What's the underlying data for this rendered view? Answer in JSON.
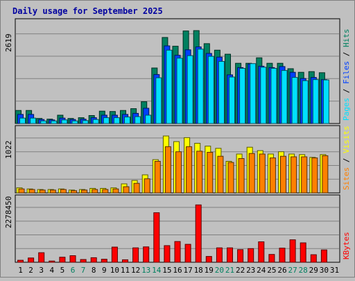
{
  "chart_data": {
    "type": "bar",
    "title": "Daily usage for September 2025",
    "colors": {
      "background": "#c0c0c0",
      "plot_bg": "#c0c0c0",
      "gridline": "#808080",
      "title": "#0000a0",
      "axis_text": "#000000",
      "weekend": "#008060",
      "hits": "#008060",
      "files": "#0040ff",
      "pages": "#00e0ff",
      "visits": "#ffff00",
      "sites": "#ff8000",
      "kbytes": "#ff0000"
    },
    "days": [
      "1",
      "2",
      "3",
      "4",
      "5",
      "6",
      "7",
      "8",
      "9",
      "10",
      "11",
      "12",
      "13",
      "14",
      "15",
      "16",
      "17",
      "18",
      "19",
      "20",
      "21",
      "22",
      "23",
      "24",
      "25",
      "26",
      "27",
      "28",
      "29",
      "30",
      "31"
    ],
    "weekend_days": [
      "6",
      "7",
      "13",
      "14",
      "20",
      "21",
      "27",
      "28"
    ],
    "panels": [
      {
        "id": "hits-files-pages",
        "ymax_label": "2619",
        "ymax": 2619,
        "legend": [
          "Pages",
          "Files",
          "Hits"
        ],
        "legend_separator": " / ",
        "series": [
          {
            "name": "Hits",
            "color": "#008060",
            "values": [
              360,
              360,
              140,
              120,
              230,
              140,
              160,
              220,
              340,
              330,
              360,
              410,
              600,
              1530,
              2370,
              2130,
              2550,
              2560,
              2200,
              2020,
              1910,
              1660,
              1660,
              1810,
              1660,
              1660,
              1510,
              1410,
              1430,
              1400,
              null
            ]
          },
          {
            "name": "Files",
            "color": "#0040ff",
            "values": [
              250,
              250,
              110,
              100,
              150,
              110,
              120,
              160,
              230,
              230,
              250,
              280,
              420,
              1350,
              2140,
              1880,
              2030,
              2110,
              1930,
              1830,
              1340,
              1540,
              1640,
              1580,
              1540,
              1570,
              1410,
              1240,
              1270,
              1210,
              null
            ]
          },
          {
            "name": "Pages",
            "color": "#00e0ff",
            "values": [
              150,
              150,
              70,
              70,
              100,
              70,
              80,
              110,
              160,
              160,
              180,
              190,
              230,
              1260,
              2020,
              1800,
              1870,
              2050,
              1850,
              1710,
              1280,
              1520,
              1650,
              1550,
              1520,
              1460,
              1270,
              1180,
              1210,
              1200,
              null
            ]
          }
        ]
      },
      {
        "id": "visits-sites",
        "ymax_label": "1022",
        "ymax": 1022,
        "legend": [
          "Sites",
          "Visits"
        ],
        "legend_separator": " / ",
        "series": [
          {
            "name": "Visits",
            "color": "#ffff00",
            "values": [
              90,
              70,
              60,
              60,
              70,
              50,
              60,
              80,
              80,
              90,
              160,
              220,
              320,
              590,
              1010,
              910,
              980,
              880,
              830,
              790,
              560,
              690,
              810,
              750,
              690,
              730,
              690,
              680,
              630,
              680,
              null
            ]
          },
          {
            "name": "Sites",
            "color": "#ff8000",
            "values": [
              70,
              60,
              50,
              50,
              60,
              40,
              50,
              60,
              60,
              70,
              110,
              170,
              250,
              560,
              820,
              730,
              820,
              740,
              720,
              650,
              540,
              610,
              700,
              690,
              620,
              650,
              640,
              640,
              620,
              660,
              null
            ]
          }
        ]
      },
      {
        "id": "kbytes",
        "ymax_label": "2278450",
        "ymax": 2278450,
        "legend": [
          "KBytes"
        ],
        "legend_separator": " / ",
        "series": [
          {
            "name": "KBytes",
            "color": "#ff0000",
            "values": [
              80000,
              170000,
              380000,
              50000,
              200000,
              260000,
              110000,
              180000,
              120000,
              600000,
              100000,
              570000,
              610000,
              1960000,
              660000,
              820000,
              710000,
              2270000,
              230000,
              570000,
              570000,
              500000,
              540000,
              810000,
              310000,
              560000,
              890000,
              770000,
              300000,
              490000,
              null
            ]
          }
        ]
      }
    ]
  }
}
